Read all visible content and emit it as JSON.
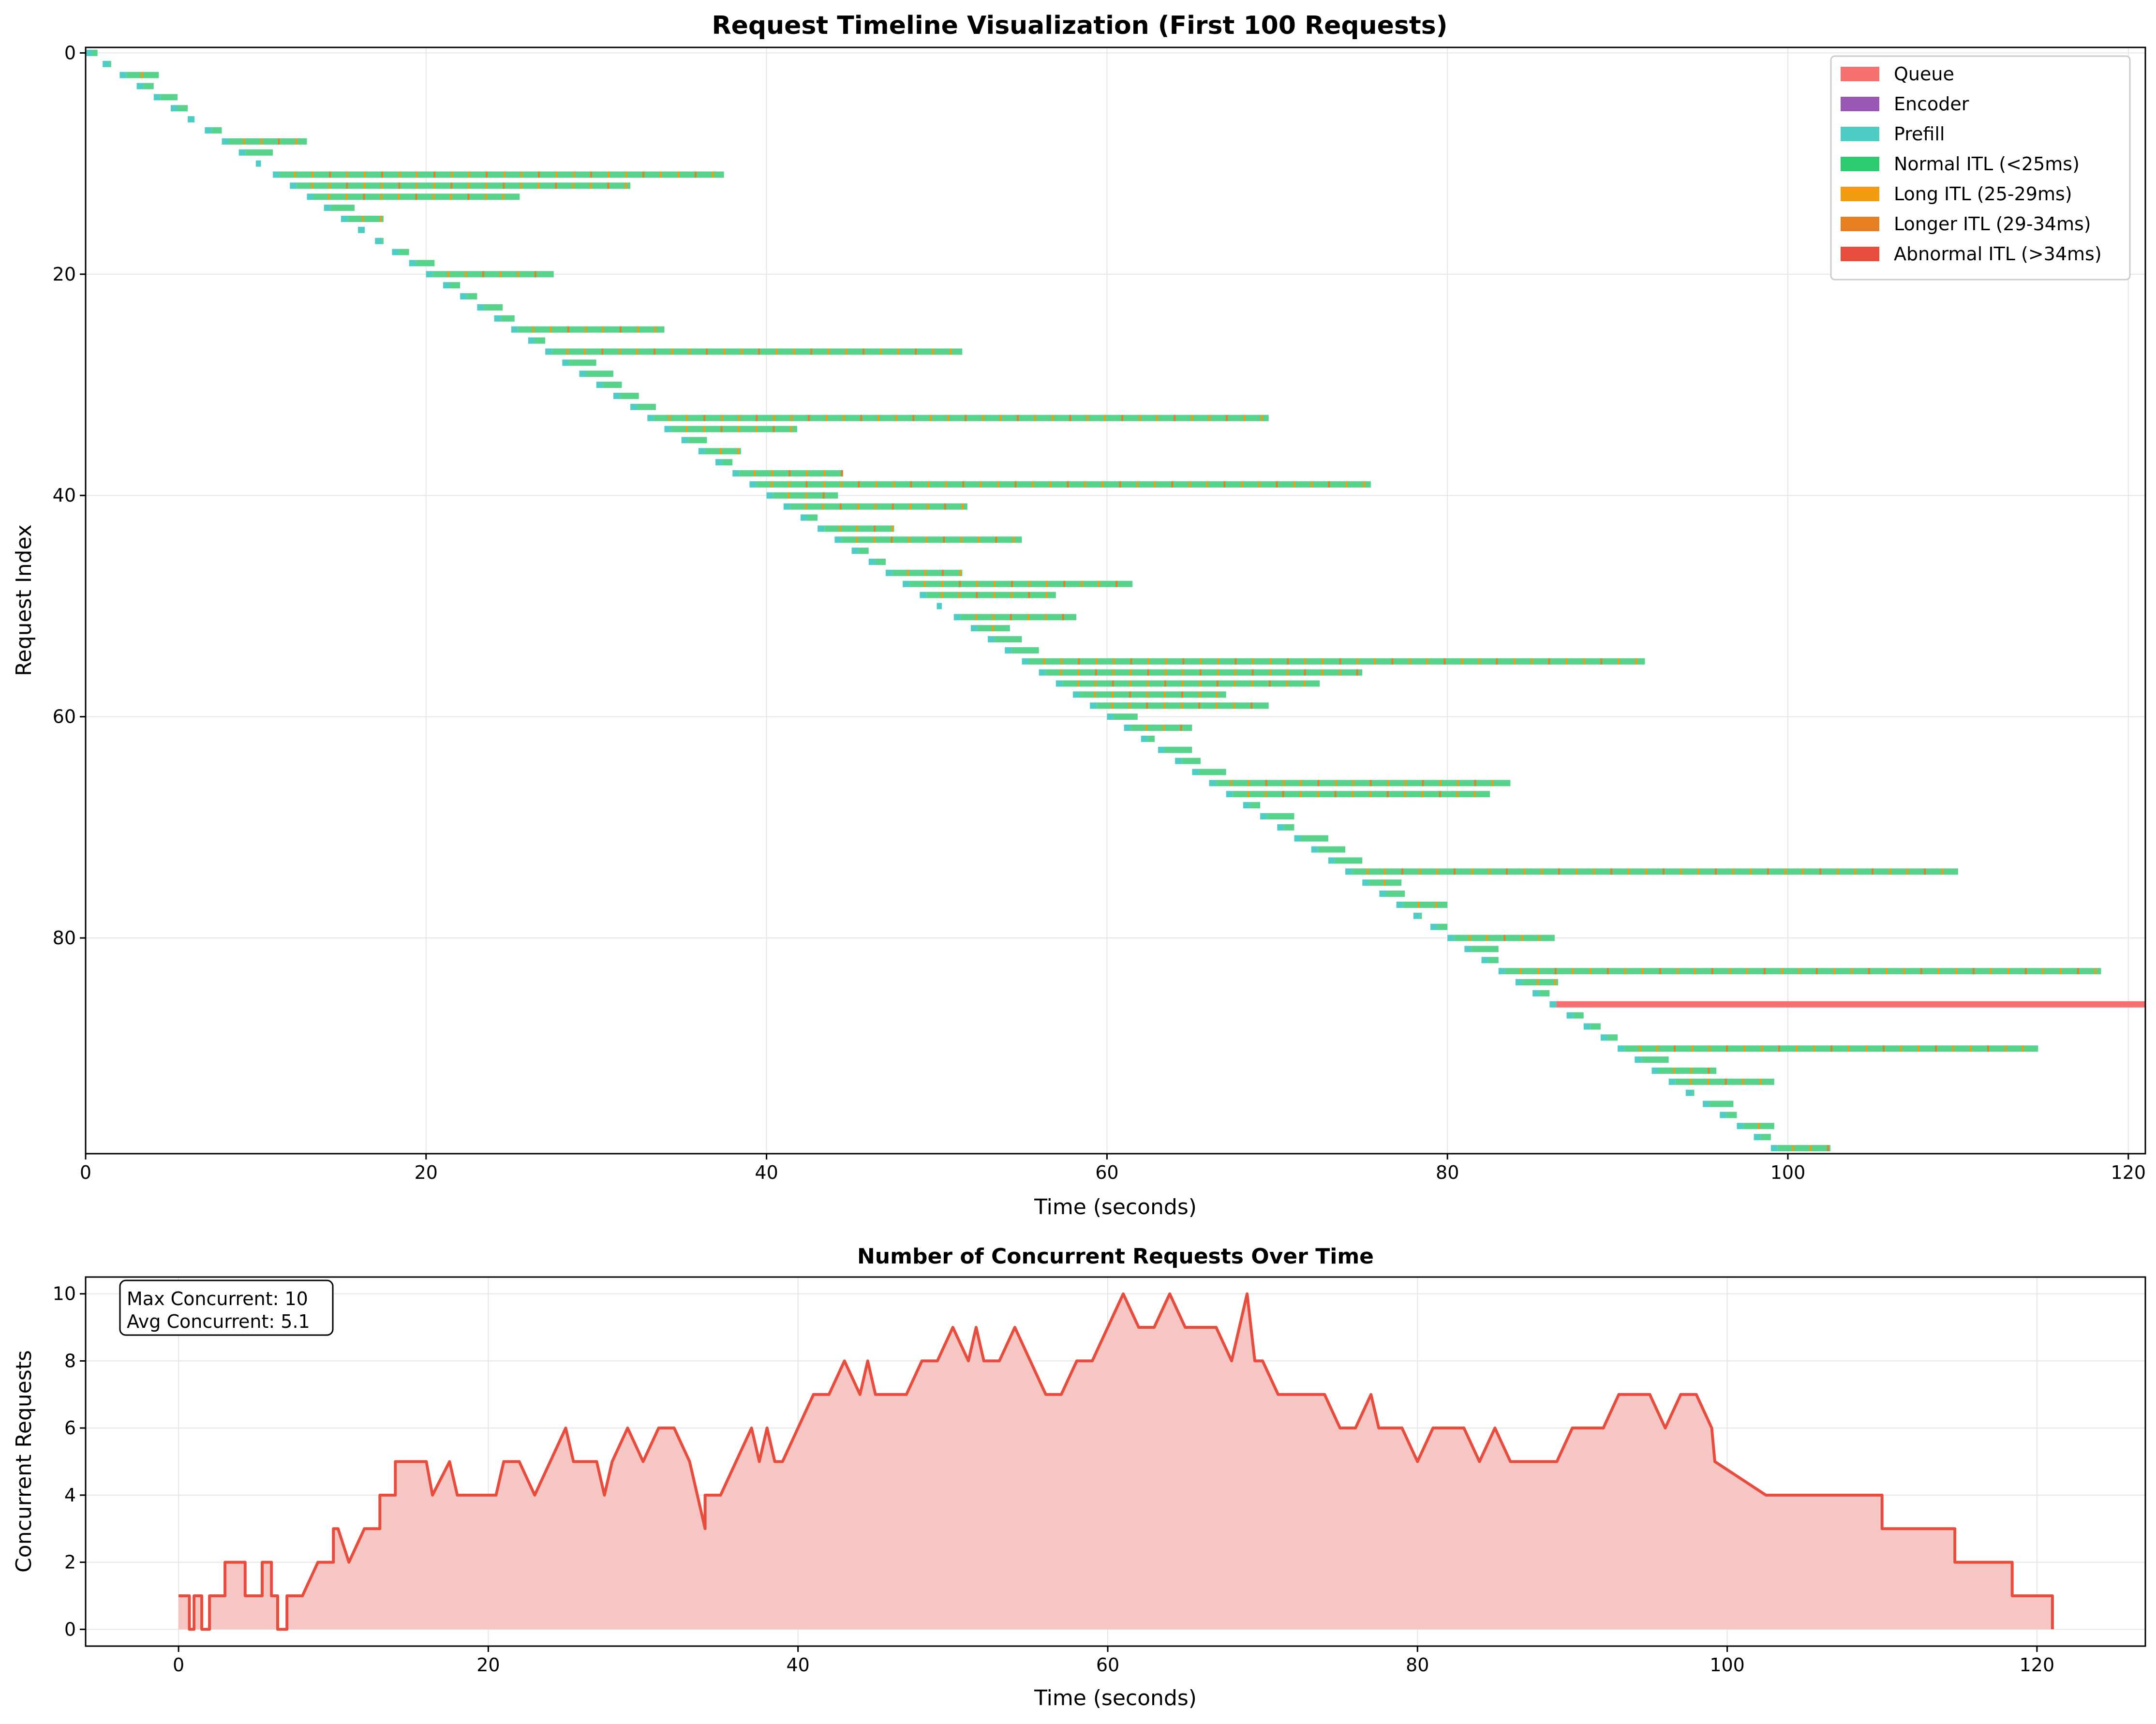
{
  "colors": {
    "queue": "#f87171",
    "encoder": "#9b59b6",
    "prefill": "#4ecdc4",
    "normal": "#57d38c",
    "long": "#f39c12",
    "longer": "#e67e22",
    "abnormal": "#e74c3c",
    "concurrency_line": "#e74c3c",
    "concurrency_fill": "#f5c6c3",
    "grid": "#e6e6e6"
  },
  "chart_data": [
    {
      "type": "timeline",
      "title": "Request Timeline Visualization (First 100 Requests)",
      "xlabel": "Time (seconds)",
      "ylabel": "Request Index",
      "xlim": [
        0,
        121
      ],
      "ylim": [
        99.5,
        -0.5
      ],
      "xticks": [
        "0",
        "20",
        "40",
        "60",
        "80",
        "100",
        "120"
      ],
      "yticks": [
        "0",
        "20",
        "40",
        "60",
        "80"
      ],
      "grid": true,
      "legend_position": "top-right",
      "legend": [
        {
          "label": "Queue",
          "color": "#f87171"
        },
        {
          "label": "Encoder",
          "color": "#9b59b6"
        },
        {
          "label": "Prefill",
          "color": "#4ecdc4"
        },
        {
          "label": "Normal ITL (<25ms)",
          "color": "#2ecc71"
        },
        {
          "label": "Long ITL (25-29ms)",
          "color": "#f39c12"
        },
        {
          "label": "Longer ITL (29-34ms)",
          "color": "#e67e22"
        },
        {
          "label": "Abnormal ITL (>34ms)",
          "color": "#e74c3c"
        }
      ],
      "requests": [
        [
          0.0,
          0.7
        ],
        [
          1.0,
          1.5
        ],
        [
          2.0,
          4.3
        ],
        [
          3.0,
          4.0
        ],
        [
          4.0,
          5.4
        ],
        [
          5.0,
          6.0
        ],
        [
          6.0,
          6.4
        ],
        [
          7.0,
          8.0
        ],
        [
          8.0,
          13.0
        ],
        [
          9.0,
          11.0
        ],
        [
          10.0,
          10.3
        ],
        [
          11.0,
          37.5
        ],
        [
          12.0,
          32.0
        ],
        [
          13.0,
          25.5
        ],
        [
          14.0,
          15.8
        ],
        [
          15.0,
          17.5
        ],
        [
          16.0,
          16.4
        ],
        [
          17.0,
          17.5
        ],
        [
          18.0,
          19.0
        ],
        [
          19.0,
          20.5
        ],
        [
          20.0,
          27.5
        ],
        [
          21.0,
          22.0
        ],
        [
          22.0,
          23.0
        ],
        [
          23.0,
          24.5
        ],
        [
          24.0,
          25.2
        ],
        [
          25.0,
          34.0
        ],
        [
          26.0,
          27.0
        ],
        [
          27.0,
          51.5
        ],
        [
          28.0,
          30.0
        ],
        [
          29.0,
          31.0
        ],
        [
          30.0,
          31.5
        ],
        [
          31.0,
          32.5
        ],
        [
          32.0,
          33.5
        ],
        [
          33.0,
          69.5
        ],
        [
          34.0,
          41.8
        ],
        [
          35.0,
          36.5
        ],
        [
          36.0,
          38.5
        ],
        [
          37.0,
          38.0
        ],
        [
          38.0,
          44.5
        ],
        [
          39.0,
          75.5
        ],
        [
          40.0,
          44.2
        ],
        [
          41.0,
          51.8
        ],
        [
          42.0,
          43.0
        ],
        [
          43.0,
          47.5
        ],
        [
          44.0,
          55.0
        ],
        [
          45.0,
          46.0
        ],
        [
          46.0,
          47.0
        ],
        [
          47.0,
          51.5
        ],
        [
          48.0,
          61.5
        ],
        [
          49.0,
          57.0
        ],
        [
          50.0,
          50.3
        ],
        [
          51.0,
          58.2
        ],
        [
          52.0,
          54.3
        ],
        [
          53.0,
          55.0
        ],
        [
          54.0,
          56.0
        ],
        [
          55.0,
          91.6
        ],
        [
          56.0,
          75.0
        ],
        [
          57.0,
          72.5
        ],
        [
          58.0,
          67.0
        ],
        [
          59.0,
          69.5
        ],
        [
          60.0,
          61.8
        ],
        [
          61.0,
          65.0
        ],
        [
          62.0,
          62.8
        ],
        [
          63.0,
          65.0
        ],
        [
          64.0,
          65.5
        ],
        [
          65.0,
          67.0
        ],
        [
          66.0,
          83.7
        ],
        [
          67.0,
          82.5
        ],
        [
          68.0,
          69.0
        ],
        [
          69.0,
          71.0
        ],
        [
          70.0,
          71.0
        ],
        [
          71.0,
          73.0
        ],
        [
          72.0,
          74.0
        ],
        [
          73.0,
          75.0
        ],
        [
          74.0,
          110.0
        ],
        [
          75.0,
          77.3
        ],
        [
          76.0,
          77.5
        ],
        [
          77.0,
          80.0
        ],
        [
          78.0,
          78.5
        ],
        [
          79.0,
          80.0
        ],
        [
          80.0,
          86.3
        ],
        [
          81.0,
          83.0
        ],
        [
          82.0,
          83.0
        ],
        [
          83.0,
          118.4
        ],
        [
          84.0,
          86.5
        ],
        [
          85.0,
          86.0
        ],
        [
          86.0,
          121.0
        ],
        [
          87.0,
          88.0
        ],
        [
          88.0,
          89.0
        ],
        [
          89.0,
          90.0
        ],
        [
          90.0,
          114.7
        ],
        [
          91.0,
          93.0
        ],
        [
          92.0,
          95.8
        ],
        [
          93.0,
          99.2
        ],
        [
          94.0,
          94.5
        ],
        [
          95.0,
          96.8
        ],
        [
          96.0,
          97.0
        ],
        [
          97.0,
          99.2
        ],
        [
          98.0,
          99.0
        ],
        [
          99.0,
          102.5
        ]
      ],
      "abnormal_request_index": 86
    },
    {
      "type": "line",
      "title": "Number of Concurrent Requests Over Time",
      "xlabel": "Time (seconds)",
      "ylabel": "Concurrent Requests",
      "xlim": [
        -6,
        127
      ],
      "ylim": [
        -0.5,
        10.5
      ],
      "xticks": [
        "0",
        "20",
        "40",
        "60",
        "80",
        "100",
        "120"
      ],
      "yticks": [
        "0",
        "2",
        "4",
        "6",
        "8",
        "10"
      ],
      "grid": true,
      "fill": true,
      "annotation": [
        "Max Concurrent: 10",
        "Avg Concurrent: 5.1"
      ],
      "step_points": [
        [
          0,
          1
        ],
        [
          0.7,
          1
        ],
        [
          0.7,
          0
        ],
        [
          1.0,
          0
        ],
        [
          1.0,
          1
        ],
        [
          1.5,
          1
        ],
        [
          1.5,
          0
        ],
        [
          2.0,
          0
        ],
        [
          2.0,
          1
        ],
        [
          3.0,
          1
        ],
        [
          3.0,
          2
        ],
        [
          4.3,
          2
        ],
        [
          4.3,
          1
        ],
        [
          5.0,
          1
        ],
        [
          5.4,
          1
        ],
        [
          5.4,
          2
        ],
        [
          6.0,
          2
        ],
        [
          6.0,
          1
        ],
        [
          6.4,
          1
        ],
        [
          6.4,
          0
        ],
        [
          7.0,
          0
        ],
        [
          7.0,
          1
        ],
        [
          8.0,
          1
        ],
        [
          9.0,
          2
        ],
        [
          10.0,
          2
        ],
        [
          10.0,
          3
        ],
        [
          10.3,
          3
        ],
        [
          11.0,
          2
        ],
        [
          12.0,
          3
        ],
        [
          13.0,
          3
        ],
        [
          13.0,
          4
        ],
        [
          14.0,
          4
        ],
        [
          14.0,
          5
        ],
        [
          15.8,
          5
        ],
        [
          16.0,
          5
        ],
        [
          16.4,
          4
        ],
        [
          17.5,
          5
        ],
        [
          18.0,
          4
        ],
        [
          19.0,
          4
        ],
        [
          20.5,
          4
        ],
        [
          21.0,
          5
        ],
        [
          22.0,
          5
        ],
        [
          23.0,
          4
        ],
        [
          24.0,
          5
        ],
        [
          25.0,
          6
        ],
        [
          25.5,
          5
        ],
        [
          26.0,
          5
        ],
        [
          27.0,
          5
        ],
        [
          27.5,
          4
        ],
        [
          28.0,
          5
        ],
        [
          29.0,
          6
        ],
        [
          30.0,
          5
        ],
        [
          31.0,
          6
        ],
        [
          32.0,
          6
        ],
        [
          33.0,
          5
        ],
        [
          34.0,
          3
        ],
        [
          34.0,
          4
        ],
        [
          35.0,
          4
        ],
        [
          36.0,
          5
        ],
        [
          37.0,
          6
        ],
        [
          37.5,
          5
        ],
        [
          38.0,
          6
        ],
        [
          38.5,
          5
        ],
        [
          39.0,
          5
        ],
        [
          40.0,
          6
        ],
        [
          41.0,
          7
        ],
        [
          42.0,
          7
        ],
        [
          43.0,
          8
        ],
        [
          44.0,
          7
        ],
        [
          44.5,
          8
        ],
        [
          45.0,
          7
        ],
        [
          46.0,
          7
        ],
        [
          47.0,
          7
        ],
        [
          48.0,
          8
        ],
        [
          49.0,
          8
        ],
        [
          50.0,
          9
        ],
        [
          51.0,
          8
        ],
        [
          51.5,
          9
        ],
        [
          52.0,
          8
        ],
        [
          53.0,
          8
        ],
        [
          54.0,
          9
        ],
        [
          55.0,
          8
        ],
        [
          56.0,
          7
        ],
        [
          57.0,
          7
        ],
        [
          58.0,
          8
        ],
        [
          59.0,
          8
        ],
        [
          60.0,
          9
        ],
        [
          61.0,
          10
        ],
        [
          62.0,
          9
        ],
        [
          63.0,
          9
        ],
        [
          64.0,
          10
        ],
        [
          65.0,
          9
        ],
        [
          66.0,
          9
        ],
        [
          67.0,
          9
        ],
        [
          68.0,
          8
        ],
        [
          69.0,
          10
        ],
        [
          69.5,
          8
        ],
        [
          70.0,
          8
        ],
        [
          71.0,
          7
        ],
        [
          72.0,
          7
        ],
        [
          73.0,
          7
        ],
        [
          74.0,
          7
        ],
        [
          75.0,
          6
        ],
        [
          76.0,
          6
        ],
        [
          77.0,
          7
        ],
        [
          77.5,
          6
        ],
        [
          78.0,
          6
        ],
        [
          79.0,
          6
        ],
        [
          80.0,
          5
        ],
        [
          81.0,
          6
        ],
        [
          82.0,
          6
        ],
        [
          83.0,
          6
        ],
        [
          84.0,
          5
        ],
        [
          85.0,
          6
        ],
        [
          86.0,
          5
        ],
        [
          87.0,
          5
        ],
        [
          88.0,
          5
        ],
        [
          89.0,
          5
        ],
        [
          90.0,
          6
        ],
        [
          91.0,
          6
        ],
        [
          92.0,
          6
        ],
        [
          93.0,
          7
        ],
        [
          94.0,
          7
        ],
        [
          95.0,
          7
        ],
        [
          96.0,
          6
        ],
        [
          97.0,
          7
        ],
        [
          98.0,
          7
        ],
        [
          99.0,
          6
        ],
        [
          99.2,
          5
        ],
        [
          102.5,
          4
        ],
        [
          110.0,
          4
        ],
        [
          110.0,
          3
        ],
        [
          114.7,
          3
        ],
        [
          114.7,
          2
        ],
        [
          118.4,
          2
        ],
        [
          118.4,
          1
        ],
        [
          121.0,
          1
        ],
        [
          121.0,
          0
        ]
      ]
    }
  ]
}
